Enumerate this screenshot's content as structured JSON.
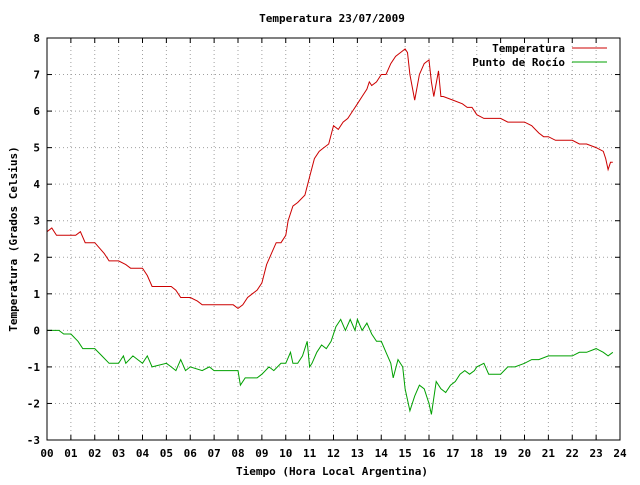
{
  "chart_data": {
    "type": "line",
    "title": "Temperatura 23/07/2009",
    "xlabel": "Tiempo (Hora Local Argentina)",
    "ylabel": "Temperatura (Grados Celsius)",
    "xlim": [
      0,
      24
    ],
    "ylim": [
      -3,
      8
    ],
    "xticks": [
      {
        "value": 0,
        "label": "00"
      },
      {
        "value": 1,
        "label": "01"
      },
      {
        "value": 2,
        "label": "02"
      },
      {
        "value": 3,
        "label": "03"
      },
      {
        "value": 4,
        "label": "04"
      },
      {
        "value": 5,
        "label": "05"
      },
      {
        "value": 6,
        "label": "06"
      },
      {
        "value": 7,
        "label": "07"
      },
      {
        "value": 8,
        "label": "08"
      },
      {
        "value": 9,
        "label": "09"
      },
      {
        "value": 10,
        "label": "10"
      },
      {
        "value": 11,
        "label": "11"
      },
      {
        "value": 12,
        "label": "12"
      },
      {
        "value": 13,
        "label": "13"
      },
      {
        "value": 14,
        "label": "14"
      },
      {
        "value": 15,
        "label": "15"
      },
      {
        "value": 16,
        "label": "16"
      },
      {
        "value": 17,
        "label": "17"
      },
      {
        "value": 18,
        "label": "18"
      },
      {
        "value": 19,
        "label": "19"
      },
      {
        "value": 20,
        "label": "20"
      },
      {
        "value": 21,
        "label": "21"
      },
      {
        "value": 22,
        "label": "22"
      },
      {
        "value": 23,
        "label": "23"
      },
      {
        "value": 24,
        "label": "24"
      }
    ],
    "yticks": [
      {
        "value": -3,
        "label": "-3"
      },
      {
        "value": -2,
        "label": "-2"
      },
      {
        "value": -1,
        "label": "-1"
      },
      {
        "value": 0,
        "label": "0"
      },
      {
        "value": 1,
        "label": "1"
      },
      {
        "value": 2,
        "label": "2"
      },
      {
        "value": 3,
        "label": "3"
      },
      {
        "value": 4,
        "label": "4"
      },
      {
        "value": 5,
        "label": "5"
      },
      {
        "value": 6,
        "label": "6"
      },
      {
        "value": 7,
        "label": "7"
      },
      {
        "value": 8,
        "label": "8"
      }
    ],
    "grid": true,
    "legend_position": "top-right",
    "series": [
      {
        "name": "Temperatura",
        "color": "#cc0000",
        "points": [
          [
            0.0,
            2.7
          ],
          [
            0.2,
            2.8
          ],
          [
            0.4,
            2.6
          ],
          [
            0.8,
            2.6
          ],
          [
            1.2,
            2.6
          ],
          [
            1.4,
            2.7
          ],
          [
            1.6,
            2.4
          ],
          [
            2.0,
            2.4
          ],
          [
            2.4,
            2.1
          ],
          [
            2.6,
            1.9
          ],
          [
            3.0,
            1.9
          ],
          [
            3.3,
            1.8
          ],
          [
            3.5,
            1.7
          ],
          [
            4.0,
            1.7
          ],
          [
            4.2,
            1.5
          ],
          [
            4.4,
            1.2
          ],
          [
            4.8,
            1.2
          ],
          [
            5.2,
            1.2
          ],
          [
            5.4,
            1.1
          ],
          [
            5.6,
            0.9
          ],
          [
            6.0,
            0.9
          ],
          [
            6.3,
            0.8
          ],
          [
            6.5,
            0.7
          ],
          [
            7.0,
            0.7
          ],
          [
            7.5,
            0.7
          ],
          [
            7.8,
            0.7
          ],
          [
            8.0,
            0.6
          ],
          [
            8.2,
            0.7
          ],
          [
            8.4,
            0.9
          ],
          [
            8.6,
            1.0
          ],
          [
            8.8,
            1.1
          ],
          [
            9.0,
            1.3
          ],
          [
            9.2,
            1.8
          ],
          [
            9.4,
            2.1
          ],
          [
            9.6,
            2.4
          ],
          [
            9.8,
            2.4
          ],
          [
            10.0,
            2.6
          ],
          [
            10.1,
            3.0
          ],
          [
            10.3,
            3.4
          ],
          [
            10.5,
            3.5
          ],
          [
            10.8,
            3.7
          ],
          [
            11.0,
            4.2
          ],
          [
            11.2,
            4.7
          ],
          [
            11.4,
            4.9
          ],
          [
            11.6,
            5.0
          ],
          [
            11.8,
            5.1
          ],
          [
            12.0,
            5.6
          ],
          [
            12.2,
            5.5
          ],
          [
            12.4,
            5.7
          ],
          [
            12.6,
            5.8
          ],
          [
            12.8,
            6.0
          ],
          [
            13.0,
            6.2
          ],
          [
            13.2,
            6.4
          ],
          [
            13.4,
            6.6
          ],
          [
            13.5,
            6.8
          ],
          [
            13.6,
            6.7
          ],
          [
            13.8,
            6.8
          ],
          [
            14.0,
            7.0
          ],
          [
            14.2,
            7.0
          ],
          [
            14.4,
            7.3
          ],
          [
            14.6,
            7.5
          ],
          [
            14.8,
            7.6
          ],
          [
            15.0,
            7.7
          ],
          [
            15.1,
            7.6
          ],
          [
            15.2,
            7.0
          ],
          [
            15.4,
            6.3
          ],
          [
            15.6,
            7.0
          ],
          [
            15.8,
            7.3
          ],
          [
            16.0,
            7.4
          ],
          [
            16.1,
            6.8
          ],
          [
            16.2,
            6.4
          ],
          [
            16.4,
            7.1
          ],
          [
            16.5,
            6.4
          ],
          [
            16.6,
            6.4
          ],
          [
            17.0,
            6.3
          ],
          [
            17.4,
            6.2
          ],
          [
            17.6,
            6.1
          ],
          [
            17.8,
            6.1
          ],
          [
            18.0,
            5.9
          ],
          [
            18.3,
            5.8
          ],
          [
            18.6,
            5.8
          ],
          [
            19.0,
            5.8
          ],
          [
            19.3,
            5.7
          ],
          [
            19.6,
            5.7
          ],
          [
            20.0,
            5.7
          ],
          [
            20.3,
            5.6
          ],
          [
            20.6,
            5.4
          ],
          [
            20.8,
            5.3
          ],
          [
            21.0,
            5.3
          ],
          [
            21.3,
            5.2
          ],
          [
            21.6,
            5.2
          ],
          [
            22.0,
            5.2
          ],
          [
            22.3,
            5.1
          ],
          [
            22.6,
            5.1
          ],
          [
            23.0,
            5.0
          ],
          [
            23.3,
            4.9
          ],
          [
            23.4,
            4.7
          ],
          [
            23.5,
            4.4
          ],
          [
            23.6,
            4.6
          ],
          [
            23.7,
            4.6
          ]
        ]
      },
      {
        "name": "Punto de Rocío",
        "color": "#00a000",
        "points": [
          [
            0.0,
            0.0
          ],
          [
            0.5,
            0.0
          ],
          [
            0.7,
            -0.1
          ],
          [
            1.0,
            -0.1
          ],
          [
            1.3,
            -0.3
          ],
          [
            1.5,
            -0.5
          ],
          [
            2.0,
            -0.5
          ],
          [
            2.3,
            -0.7
          ],
          [
            2.6,
            -0.9
          ],
          [
            3.0,
            -0.9
          ],
          [
            3.2,
            -0.7
          ],
          [
            3.3,
            -0.9
          ],
          [
            3.6,
            -0.7
          ],
          [
            3.8,
            -0.8
          ],
          [
            4.0,
            -0.9
          ],
          [
            4.2,
            -0.7
          ],
          [
            4.4,
            -1.0
          ],
          [
            5.0,
            -0.9
          ],
          [
            5.2,
            -1.0
          ],
          [
            5.4,
            -1.1
          ],
          [
            5.6,
            -0.8
          ],
          [
            5.8,
            -1.1
          ],
          [
            6.0,
            -1.0
          ],
          [
            6.5,
            -1.1
          ],
          [
            6.8,
            -1.0
          ],
          [
            7.0,
            -1.1
          ],
          [
            7.5,
            -1.1
          ],
          [
            8.0,
            -1.1
          ],
          [
            8.1,
            -1.5
          ],
          [
            8.3,
            -1.3
          ],
          [
            8.5,
            -1.3
          ],
          [
            8.8,
            -1.3
          ],
          [
            9.0,
            -1.2
          ],
          [
            9.3,
            -1.0
          ],
          [
            9.5,
            -1.1
          ],
          [
            9.8,
            -0.9
          ],
          [
            10.0,
            -0.9
          ],
          [
            10.2,
            -0.6
          ],
          [
            10.3,
            -0.9
          ],
          [
            10.5,
            -0.9
          ],
          [
            10.7,
            -0.7
          ],
          [
            10.9,
            -0.3
          ],
          [
            11.0,
            -1.0
          ],
          [
            11.1,
            -0.9
          ],
          [
            11.3,
            -0.6
          ],
          [
            11.5,
            -0.4
          ],
          [
            11.7,
            -0.5
          ],
          [
            11.9,
            -0.3
          ],
          [
            12.1,
            0.1
          ],
          [
            12.3,
            0.3
          ],
          [
            12.5,
            0.0
          ],
          [
            12.7,
            0.3
          ],
          [
            12.9,
            0.0
          ],
          [
            13.0,
            0.3
          ],
          [
            13.2,
            0.0
          ],
          [
            13.4,
            0.2
          ],
          [
            13.6,
            -0.1
          ],
          [
            13.8,
            -0.3
          ],
          [
            14.0,
            -0.3
          ],
          [
            14.2,
            -0.6
          ],
          [
            14.4,
            -0.9
          ],
          [
            14.5,
            -1.3
          ],
          [
            14.7,
            -0.8
          ],
          [
            14.9,
            -1.0
          ],
          [
            15.0,
            -1.6
          ],
          [
            15.2,
            -2.2
          ],
          [
            15.4,
            -1.8
          ],
          [
            15.6,
            -1.5
          ],
          [
            15.8,
            -1.6
          ],
          [
            16.0,
            -2.0
          ],
          [
            16.1,
            -2.3
          ],
          [
            16.3,
            -1.4
          ],
          [
            16.5,
            -1.6
          ],
          [
            16.7,
            -1.7
          ],
          [
            16.9,
            -1.5
          ],
          [
            17.1,
            -1.4
          ],
          [
            17.3,
            -1.2
          ],
          [
            17.5,
            -1.1
          ],
          [
            17.7,
            -1.2
          ],
          [
            17.9,
            -1.1
          ],
          [
            18.0,
            -1.0
          ],
          [
            18.3,
            -0.9
          ],
          [
            18.5,
            -1.2
          ],
          [
            19.0,
            -1.2
          ],
          [
            19.3,
            -1.0
          ],
          [
            19.6,
            -1.0
          ],
          [
            20.0,
            -0.9
          ],
          [
            20.3,
            -0.8
          ],
          [
            20.6,
            -0.8
          ],
          [
            21.0,
            -0.7
          ],
          [
            21.3,
            -0.7
          ],
          [
            21.6,
            -0.7
          ],
          [
            22.0,
            -0.7
          ],
          [
            22.3,
            -0.6
          ],
          [
            22.6,
            -0.6
          ],
          [
            23.0,
            -0.5
          ],
          [
            23.3,
            -0.6
          ],
          [
            23.5,
            -0.7
          ],
          [
            23.7,
            -0.6
          ]
        ]
      }
    ]
  }
}
